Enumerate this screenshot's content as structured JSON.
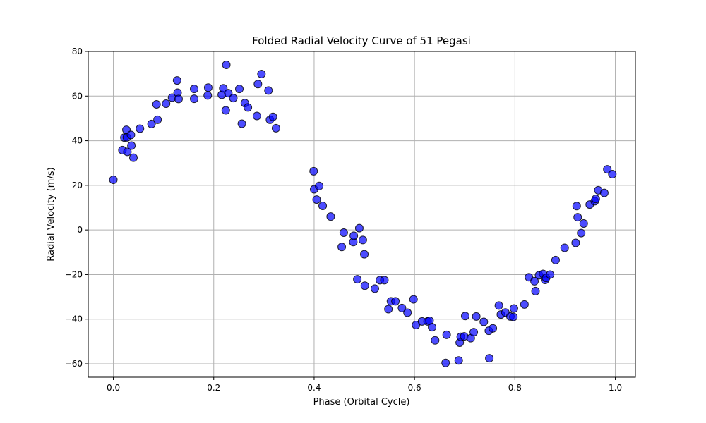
{
  "chart_data": {
    "type": "scatter",
    "title": "Folded Radial Velocity Curve of 51 Pegasi",
    "xlabel": "Phase (Orbital Cycle)",
    "ylabel": "Radial Velocity (m/s)",
    "xlim": [
      -0.05,
      1.04
    ],
    "ylim": [
      -66,
      80
    ],
    "xticks": [
      0.0,
      0.2,
      0.4,
      0.6,
      0.8,
      1.0
    ],
    "xtick_labels": [
      "0.0",
      "0.2",
      "0.4",
      "0.6",
      "0.8",
      "1.0"
    ],
    "yticks": [
      -60,
      -40,
      -20,
      0,
      20,
      40,
      60,
      80
    ],
    "ytick_labels": [
      "−60",
      "−40",
      "−20",
      "0",
      "20",
      "40",
      "60",
      "80"
    ],
    "grid": true,
    "marker_color": "#0000ff",
    "marker_edge_color": "#000000",
    "marker_alpha": 0.7,
    "series": [
      {
        "x": [
          0.0,
          0.018,
          0.022,
          0.026,
          0.027,
          0.028,
          0.035,
          0.036,
          0.04,
          0.053,
          0.076,
          0.086,
          0.088,
          0.105,
          0.117,
          0.127,
          0.128,
          0.13,
          0.161,
          0.161,
          0.188,
          0.189,
          0.216,
          0.219,
          0.224,
          0.225,
          0.229,
          0.239,
          0.251,
          0.256,
          0.262,
          0.268,
          0.286,
          0.288,
          0.295,
          0.309,
          0.312,
          0.318,
          0.324,
          0.399,
          0.4,
          0.405,
          0.41,
          0.417,
          0.433,
          0.455,
          0.459,
          0.478,
          0.479,
          0.486,
          0.49,
          0.497,
          0.5,
          0.501,
          0.521,
          0.531,
          0.54,
          0.548,
          0.553,
          0.562,
          0.575,
          0.586,
          0.598,
          0.603,
          0.615,
          0.626,
          0.63,
          0.635,
          0.641,
          0.662,
          0.664,
          0.688,
          0.69,
          0.692,
          0.699,
          0.701,
          0.712,
          0.718,
          0.723,
          0.738,
          0.748,
          0.749,
          0.756,
          0.768,
          0.772,
          0.781,
          0.791,
          0.797,
          0.798,
          0.819,
          0.828,
          0.839,
          0.841,
          0.848,
          0.856,
          0.86,
          0.862,
          0.87,
          0.881,
          0.899,
          0.921,
          0.923,
          0.925,
          0.932,
          0.937,
          0.949,
          0.959,
          0.961,
          0.966,
          0.978,
          0.984,
          0.994
        ],
        "y": [
          22.5,
          35.8,
          41.4,
          44.9,
          41.5,
          35.0,
          42.6,
          37.8,
          32.4,
          45.4,
          47.5,
          56.3,
          49.4,
          56.6,
          59.3,
          67.0,
          61.5,
          58.7,
          63.2,
          58.8,
          60.3,
          63.8,
          60.6,
          63.5,
          53.6,
          74.0,
          61.3,
          59.1,
          63.2,
          47.6,
          56.9,
          54.9,
          51.1,
          65.4,
          69.9,
          62.5,
          49.4,
          50.7,
          45.6,
          26.3,
          18.2,
          13.6,
          19.7,
          10.8,
          6.0,
          -7.6,
          -1.2,
          -5.4,
          -2.6,
          -22.1,
          0.8,
          -4.5,
          -10.9,
          -25.0,
          -26.3,
          -22.5,
          -22.5,
          -35.5,
          -32.0,
          -32.0,
          -35.0,
          -37.1,
          -31.1,
          -42.6,
          -41.0,
          -41.0,
          -40.7,
          -43.6,
          -49.5,
          -59.6,
          -47.0,
          -58.5,
          -50.5,
          -47.9,
          -47.7,
          -38.6,
          -48.5,
          -45.8,
          -38.8,
          -41.2,
          -45.2,
          -57.5,
          -44.1,
          -33.9,
          -37.9,
          -37.0,
          -38.8,
          -39.0,
          -35.2,
          -33.4,
          -21.2,
          -23.0,
          -27.4,
          -20.3,
          -19.7,
          -22.4,
          -21.5,
          -20.0,
          -13.5,
          -8.0,
          -5.8,
          10.7,
          5.7,
          -1.4,
          2.9,
          11.4,
          12.9,
          13.9,
          17.8,
          16.6,
          27.2,
          25.0
        ]
      }
    ]
  }
}
